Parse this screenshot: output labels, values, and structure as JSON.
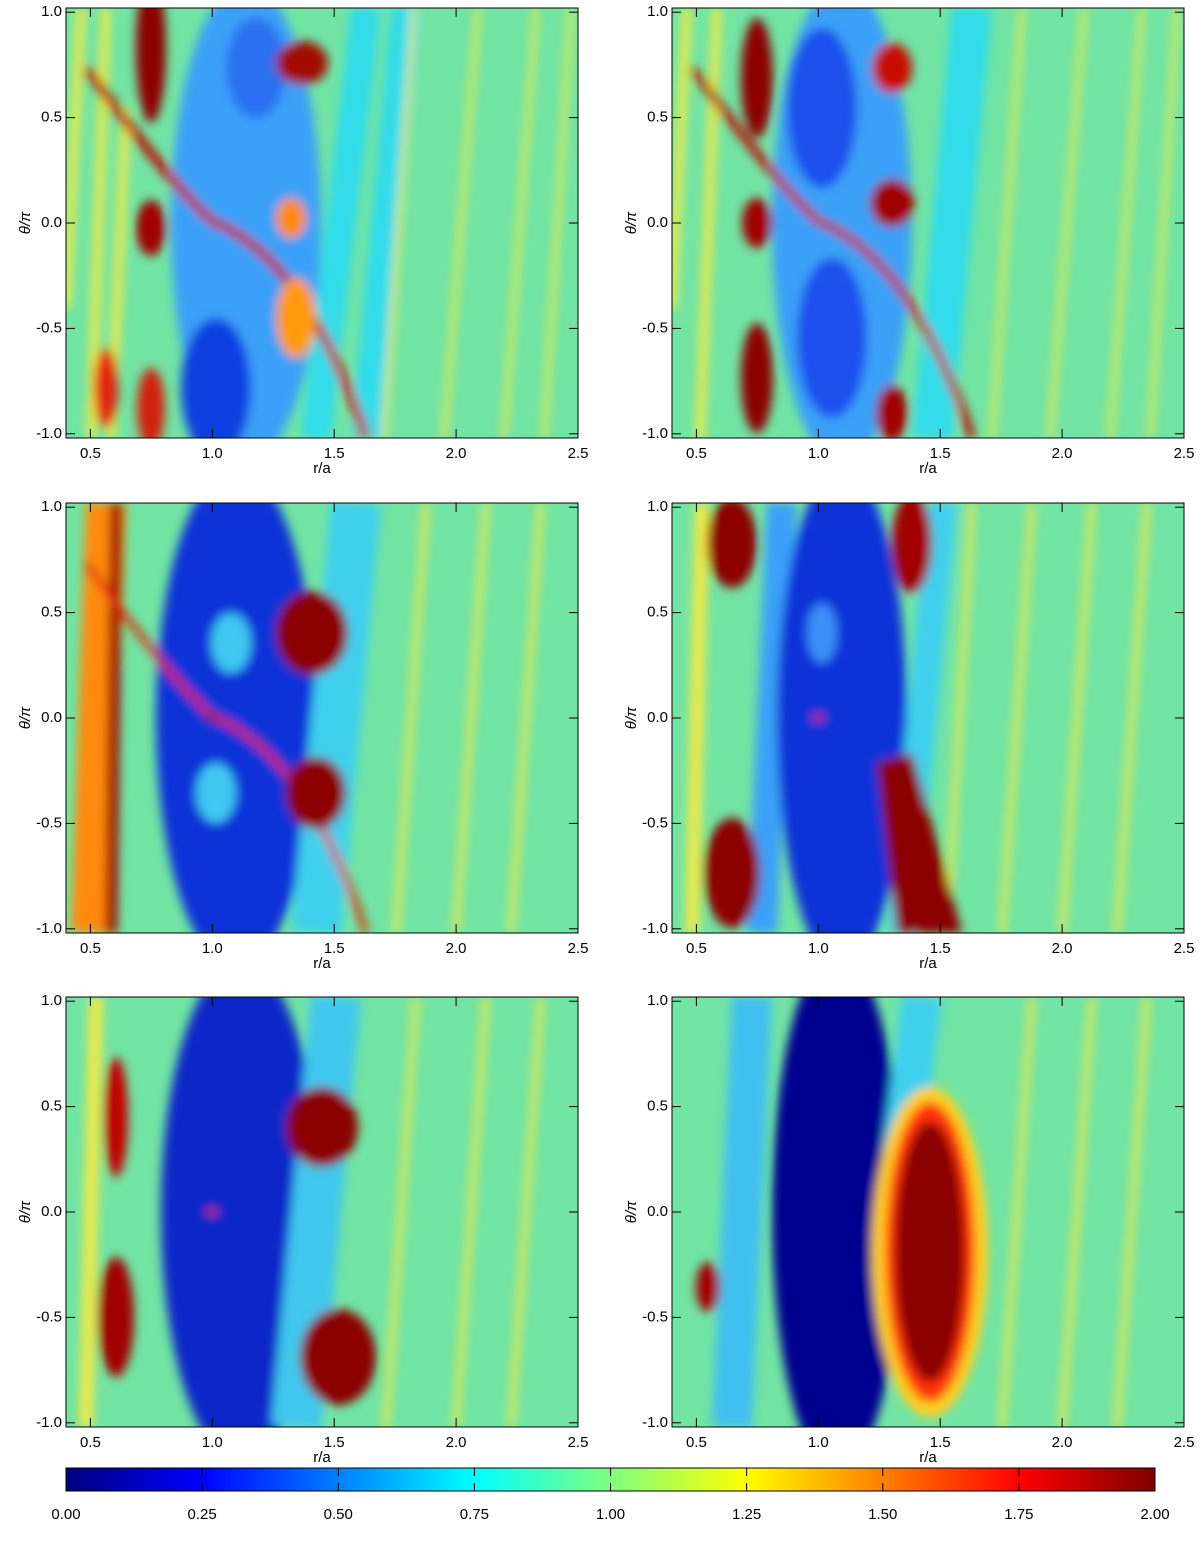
{
  "chart_data": [
    {
      "type": "heatmap",
      "xlabel": "r/a",
      "ylabel": "θ/π",
      "xlim": [
        0.4,
        2.5
      ],
      "ylim": [
        -1.02,
        1.02
      ],
      "xticks": [
        0.5,
        {
          "value": 1,
          "label": "1.0"
        },
        1.5,
        {
          "value": 2,
          "label": "2.0"
        },
        2.5
      ],
      "yticks": [
        {
          "value": -1,
          "label": "-1.0"
        },
        -0.5,
        {
          "value": 0,
          "label": "0.0"
        },
        0.5,
        {
          "value": 1,
          "label": "1.0"
        }
      ]
    },
    {
      "type": "heatmap",
      "xlabel": "r/a",
      "ylabel": "θ/π",
      "xlim": [
        0.4,
        2.5
      ],
      "ylim": [
        -1.02,
        1.02
      ],
      "xticks": [
        0.5,
        {
          "value": 1,
          "label": "1.0"
        },
        1.5,
        {
          "value": 2,
          "label": "2.0"
        },
        2.5
      ],
      "yticks": [
        {
          "value": -1,
          "label": "-1.0"
        },
        -0.5,
        {
          "value": 0,
          "label": "0.0"
        },
        0.5,
        {
          "value": 1,
          "label": "1.0"
        }
      ]
    },
    {
      "type": "heatmap",
      "xlabel": "r/a",
      "ylabel": "θ/π",
      "xlim": [
        0.4,
        2.5
      ],
      "ylim": [
        -1.02,
        1.02
      ],
      "xticks": [
        0.5,
        {
          "value": 1,
          "label": "1.0"
        },
        1.5,
        {
          "value": 2,
          "label": "2.0"
        },
        2.5
      ],
      "yticks": [
        {
          "value": -1,
          "label": "-1.0"
        },
        -0.5,
        {
          "value": 0,
          "label": "0.0"
        },
        0.5,
        {
          "value": 1,
          "label": "1.0"
        }
      ]
    },
    {
      "type": "heatmap",
      "xlabel": "r/a",
      "ylabel": "θ/π",
      "xlim": [
        0.4,
        2.5
      ],
      "ylim": [
        -1.02,
        1.02
      ],
      "xticks": [
        0.5,
        {
          "value": 1,
          "label": "1.0"
        },
        1.5,
        {
          "value": 2,
          "label": "2.0"
        },
        2.5
      ],
      "yticks": [
        {
          "value": -1,
          "label": "-1.0"
        },
        -0.5,
        {
          "value": 0,
          "label": "0.0"
        },
        0.5,
        {
          "value": 1,
          "label": "1.0"
        }
      ]
    },
    {
      "type": "heatmap",
      "xlabel": "r/a",
      "ylabel": "θ/π",
      "xlim": [
        0.4,
        2.5
      ],
      "ylim": [
        -1.02,
        1.02
      ],
      "xticks": [
        0.5,
        {
          "value": 1,
          "label": "1.0"
        },
        1.5,
        {
          "value": 2,
          "label": "2.0"
        },
        2.5
      ],
      "yticks": [
        {
          "value": -1,
          "label": "-1.0"
        },
        -0.5,
        {
          "value": 0,
          "label": "0.0"
        },
        0.5,
        {
          "value": 1,
          "label": "1.0"
        }
      ]
    },
    {
      "type": "heatmap",
      "xlabel": "r/a",
      "ylabel": "θ/π",
      "xlim": [
        0.4,
        2.5
      ],
      "ylim": [
        -1.02,
        1.02
      ],
      "xticks": [
        0.5,
        {
          "value": 1,
          "label": "1.0"
        },
        1.5,
        {
          "value": 2,
          "label": "2.0"
        },
        2.5
      ],
      "yticks": [
        {
          "value": -1,
          "label": "-1.0"
        },
        -0.5,
        {
          "value": 0,
          "label": "0.0"
        },
        0.5,
        {
          "value": 1,
          "label": "1.0"
        }
      ]
    },
    {
      "type": "colorbar",
      "clim": [
        0,
        2
      ],
      "colormap": [
        "#00007f",
        "#0000ff",
        "#007fff",
        "#00ffff",
        "#7fff7f",
        "#ffff00",
        "#ff7f00",
        "#ff0000",
        "#7f0000"
      ],
      "cticks": [
        {
          "value": 0,
          "label": "0.00"
        },
        0.25,
        {
          "value": 0.5,
          "label": "0.50"
        },
        0.75,
        {
          "value": 1,
          "label": "1.00"
        },
        1.25,
        {
          "value": 1.5,
          "label": "1.50"
        },
        1.75,
        {
          "value": 2,
          "label": "2.00"
        }
      ]
    }
  ]
}
